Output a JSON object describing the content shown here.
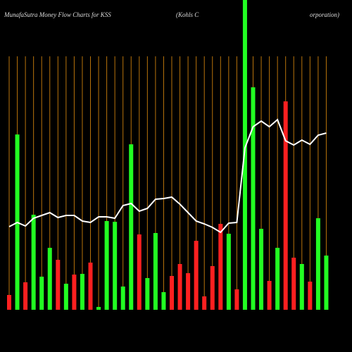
{
  "chart_data": {
    "type": "bar",
    "title": "MunafaSutra  Money Flow  Charts for KSS",
    "subtitle": [
      "(Kohls C",
      "orporation)"
    ],
    "ylim": [
      0,
      440
    ],
    "values": [
      21,
      249,
      39,
      135,
      47,
      88,
      71,
      37,
      50,
      51,
      67,
      4,
      126,
      125,
      33,
      235,
      107,
      45,
      109,
      25,
      48,
      65,
      52,
      98,
      19,
      62,
      122,
      108,
      29,
      440,
      316,
      115,
      41,
      88,
      296,
      74,
      65,
      40,
      130,
      77
    ],
    "bar_colors": [
      "#ff2020",
      "#22ff22",
      "#ff2020",
      "#22ff22",
      "#22ff22",
      "#22ff22",
      "#ff2020",
      "#22ff22",
      "#ff2020",
      "#22ff22",
      "#ff2020",
      "#22ff22",
      "#22ff22",
      "#22ff22",
      "#22ff22",
      "#22ff22",
      "#ff2020",
      "#22ff22",
      "#22ff22",
      "#22ff22",
      "#ff2020",
      "#ff2020",
      "#ff2020",
      "#ff2020",
      "#ff2020",
      "#ff2020",
      "#ff2020",
      "#22ff22",
      "#ff2020",
      "#22ff22",
      "#22ff22",
      "#22ff22",
      "#ff2020",
      "#22ff22",
      "#ff2020",
      "#ff2020",
      "#22ff22",
      "#ff2020",
      "#22ff22",
      "#22ff22"
    ],
    "line": {
      "color": "#ffffff",
      "values": [
        118,
        124,
        119,
        130,
        134,
        138,
        131,
        134,
        134,
        126,
        124,
        132,
        132,
        130,
        148,
        151,
        140,
        144,
        157,
        158,
        160,
        150,
        138,
        126,
        122,
        117,
        110,
        123,
        124,
        230,
        260,
        268,
        260,
        270,
        240,
        234,
        241,
        235,
        248,
        251
      ]
    },
    "grid": true,
    "grid_color": "#b8730b"
  }
}
